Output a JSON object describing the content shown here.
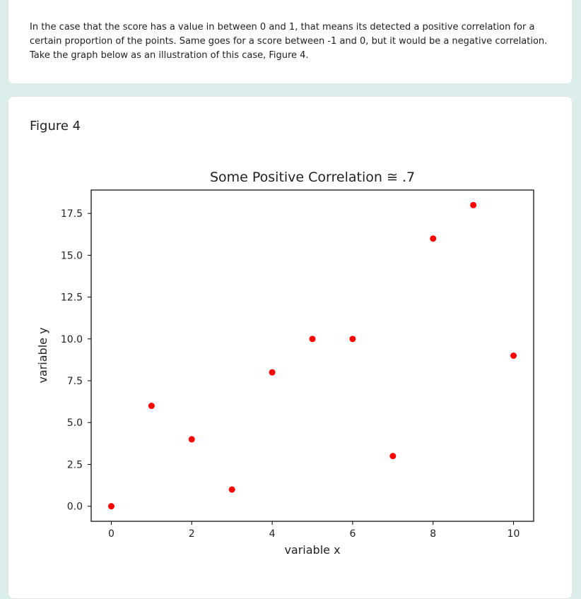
{
  "description": "In the case that the score has a value in between 0 and 1, that means its detected a positive correlation for a certain proportion of the points. Same goes for a score between -1 and 0, but it would be a negative correlation. Take the graph below as an illustration of this case, Figure 4.",
  "figure": {
    "title": "Figure 4"
  },
  "colors": {
    "page_background": "#dbeeec",
    "card_background": "#ffffff",
    "point_color": "#ff0000"
  },
  "chart_data": {
    "type": "scatter",
    "title": "Some Positive Correlation ≅ .7",
    "xlabel": "variable x",
    "ylabel": "variable y",
    "x": [
      0,
      1,
      2,
      3,
      4,
      5,
      6,
      7,
      8,
      9,
      10
    ],
    "y": [
      0,
      6,
      4,
      1,
      8,
      10,
      10,
      3,
      16,
      18,
      9
    ],
    "xlim": [
      -0.5,
      10.5
    ],
    "ylim": [
      -0.9,
      18.9
    ],
    "xticks": [
      0,
      2,
      4,
      6,
      8,
      10
    ],
    "xtick_labels": [
      "0",
      "2",
      "4",
      "6",
      "8",
      "10"
    ],
    "yticks": [
      0,
      2.5,
      5,
      7.5,
      10,
      12.5,
      15,
      17.5
    ],
    "ytick_labels": [
      "0.0",
      "2.5",
      "5.0",
      "7.5",
      "10.0",
      "12.5",
      "15.0",
      "17.5"
    ],
    "point_color": "#ff0000",
    "grid": false,
    "legend": "none"
  }
}
